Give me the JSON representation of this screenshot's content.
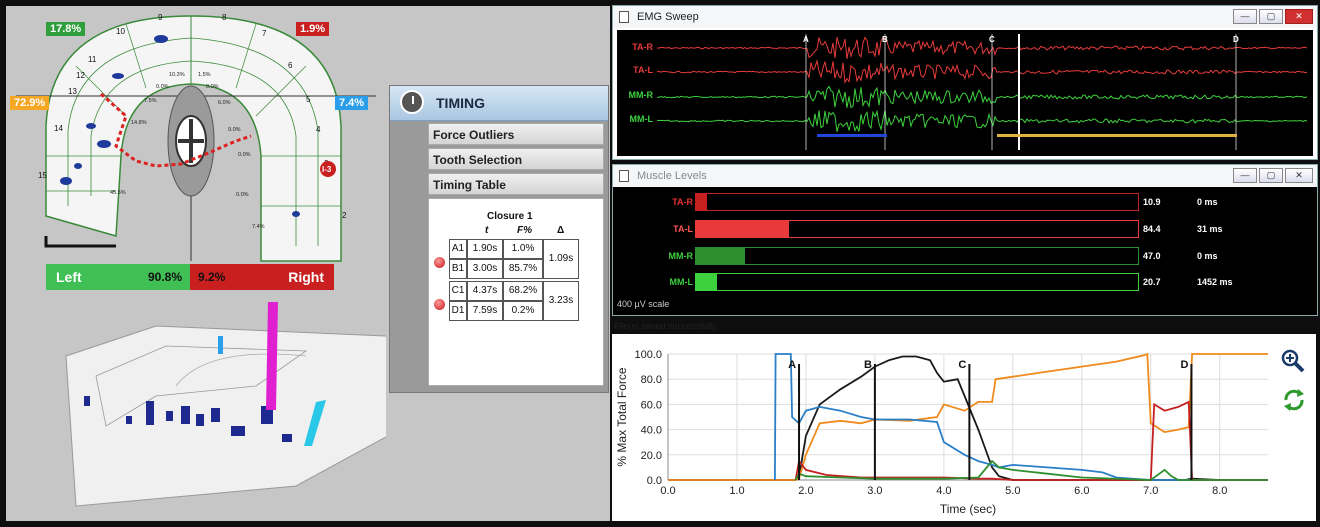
{
  "arch": {
    "top_left_pct": "17.8%",
    "top_right_pct": "1.9%",
    "mid_left_pct": "72.9%",
    "mid_right_pct": "7.4%",
    "left_label": "Left",
    "left_value": "90.8%",
    "right_value": "9.2%",
    "right_label": "Right",
    "colors": {
      "green": "#3fbf54",
      "red": "#c91f1f",
      "orange": "#f5a623",
      "blue": "#2a9ee8"
    },
    "tooth_numbers": [
      "9",
      "8",
      "10",
      "7",
      "11",
      "6",
      "12",
      "13",
      "5",
      "14",
      "4",
      "15",
      "3",
      "2"
    ],
    "inner_pcts": [
      "10.3%",
      "1.5%",
      "0.0%",
      "0.0%",
      "7.5%",
      "6.0%",
      "14.8%",
      "9.0%",
      "0.0%",
      "45.5%",
      "0.0%",
      "7.4%"
    ],
    "marker": "I-3"
  },
  "timing": {
    "title": "TIMING",
    "menu": [
      "Force Outliers",
      "Tooth Selection",
      "Timing Table"
    ],
    "table": {
      "heading": "Closure 1",
      "col_t": "t",
      "col_f": "F%",
      "col_d": "Δ",
      "rows": [
        {
          "id": "A1",
          "t": "1.90s",
          "f": "1.0%"
        },
        {
          "id": "B1",
          "t": "3.00s",
          "f": "85.7%"
        },
        {
          "id": "C1",
          "t": "4.37s",
          "f": "68.2%"
        },
        {
          "id": "D1",
          "t": "7.59s",
          "f": "0.2%"
        }
      ],
      "delta1": "1.09s",
      "delta2": "3.23s"
    }
  },
  "emg": {
    "title": "EMG Sweep",
    "channels": [
      "TA-R",
      "TA-L",
      "MM-R",
      "MM-L"
    ],
    "markers": [
      "A",
      "B",
      "C",
      "D"
    ],
    "colors": {
      "red": "#e63b3b",
      "green": "#3ed13e"
    }
  },
  "muscle": {
    "title": "Muscle Levels",
    "rows": [
      {
        "label": "TA-R",
        "value": "10.9",
        "ms": "0 ms",
        "level": 0.026,
        "color": "#c42020",
        "labelColor": "#e83030"
      },
      {
        "label": "TA-L",
        "value": "84.4",
        "ms": "31 ms",
        "level": 0.21,
        "color": "#e83a3a",
        "labelColor": "#ff5555"
      },
      {
        "label": "MM-R",
        "value": "47.0",
        "ms": "0 ms",
        "level": 0.11,
        "color": "#2e8f2e",
        "labelColor": "#3ecf3e"
      },
      {
        "label": "MM-L",
        "value": "20.7",
        "ms": "1452 ms",
        "level": 0.047,
        "color": "#3ed13e",
        "labelColor": "#3ecf3e"
      }
    ],
    "scale": "400 µV scale"
  },
  "status": "File(s) saved successfully.",
  "chart_data": {
    "type": "line",
    "xlabel": "Time (sec)",
    "ylabel": "% Max Total Force",
    "xlim": [
      0,
      8.7
    ],
    "ylim": [
      0,
      100
    ],
    "xticks": [
      "0.0",
      "1.0",
      "2.0",
      "3.0",
      "4.0",
      "5.0",
      "6.0",
      "7.0",
      "8.0"
    ],
    "yticks": [
      "0.0",
      "20.0",
      "40.0",
      "60.0",
      "80.0",
      "100.0"
    ],
    "markers": [
      {
        "label": "A",
        "x": 1.9
      },
      {
        "label": "B",
        "x": 3.0
      },
      {
        "label": "C",
        "x": 4.37
      },
      {
        "label": "D",
        "x": 7.59
      }
    ],
    "series": [
      {
        "color": "#1a1a1a",
        "x": [
          0,
          1.85,
          1.9,
          2.0,
          2.2,
          2.5,
          2.8,
          3.0,
          3.2,
          3.4,
          3.6,
          3.8,
          3.9,
          4.0,
          4.2,
          4.35,
          4.5,
          4.6,
          4.7,
          4.8,
          5.0,
          6.0,
          7.0,
          7.5,
          7.59,
          8.0,
          8.7
        ],
        "y": [
          0,
          0,
          2,
          35,
          60,
          72,
          82,
          90,
          95,
          98,
          98,
          95,
          85,
          78,
          80,
          60,
          40,
          25,
          10,
          3,
          0,
          0,
          0,
          0,
          1,
          0,
          0
        ]
      },
      {
        "color": "#f08a1c",
        "x": [
          0,
          1.85,
          1.9,
          2.0,
          2.2,
          2.5,
          2.8,
          3.0,
          3.5,
          3.9,
          4.0,
          4.3,
          4.5,
          4.7,
          4.75,
          5.0,
          5.5,
          6.0,
          6.5,
          6.9,
          6.95,
          7.0,
          7.2,
          7.4,
          7.55,
          7.6,
          8.0,
          8.7
        ],
        "y": [
          0,
          0,
          1,
          20,
          45,
          47,
          45,
          48,
          47,
          50,
          60,
          55,
          62,
          62,
          80,
          82,
          86,
          90,
          94,
          99,
          100,
          45,
          38,
          40,
          42,
          100,
          100,
          100
        ]
      },
      {
        "color": "#2a7fc9",
        "x": [
          1.55,
          1.56,
          1.78,
          1.8,
          1.9,
          2.0,
          2.2,
          2.5,
          2.8,
          3.0,
          3.5,
          3.9,
          4.0,
          4.3,
          4.5,
          4.7,
          4.8,
          5.0,
          5.5,
          6.0,
          6.3,
          6.5,
          7.0,
          8.7
        ],
        "y": [
          0,
          100,
          100,
          50,
          45,
          55,
          58,
          55,
          50,
          48,
          48,
          46,
          30,
          20,
          15,
          12,
          10,
          12,
          10,
          8,
          6,
          2,
          0,
          0
        ]
      },
      {
        "color": "#c42020",
        "x": [
          1.85,
          1.9,
          2.0,
          2.3,
          2.8,
          3.5,
          4.0,
          4.5,
          4.7,
          5.0,
          7.0,
          7.05,
          7.2,
          7.4,
          7.55,
          7.6,
          8.0,
          8.7
        ],
        "y": [
          0,
          15,
          8,
          4,
          2,
          2,
          2,
          1,
          1,
          0,
          0,
          60,
          55,
          58,
          62,
          0,
          0,
          0
        ]
      },
      {
        "color": "#2e8f2e",
        "x": [
          1.85,
          1.9,
          2.0,
          2.5,
          3.0,
          4.0,
          4.5,
          4.7,
          4.8,
          5.0,
          5.5,
          6.0,
          7.0,
          7.2,
          7.3,
          7.4,
          8.7
        ],
        "y": [
          0,
          5,
          3,
          2,
          1,
          1,
          2,
          15,
          10,
          8,
          5,
          2,
          0,
          8,
          3,
          0,
          0
        ]
      }
    ]
  }
}
